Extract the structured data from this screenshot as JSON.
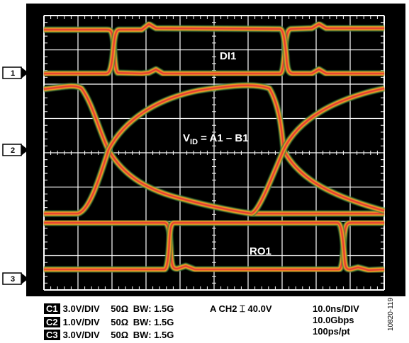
{
  "markers": [
    {
      "label": "1"
    },
    {
      "label": "2"
    },
    {
      "label": "3"
    }
  ],
  "trace_labels": {
    "di1": "DI1",
    "vid_main": "V",
    "vid_sub": "ID",
    "vid_rest": " = A1 – B1",
    "ro1": "RO1"
  },
  "channels": [
    {
      "id": "C1",
      "volts": "3.0V/DIV",
      "impedance": "50Ω",
      "bw": "BW: 1.5G"
    },
    {
      "id": "C2",
      "volts": "1.0V/DIV",
      "impedance": "50Ω",
      "bw": "BW: 1.5G"
    },
    {
      "id": "C3",
      "volts": "3.0V/DIV",
      "impedance": "50Ω",
      "bw": "BW: 1.5G"
    }
  ],
  "trigger": "A  CH2 ⌶ 40.0V",
  "timebase": [
    "10.0ns/DIV",
    "10.0Gbps",
    "100ps/pt"
  ],
  "figure_id": "10820-119",
  "colors": {
    "screen": "#000000",
    "grid": "#ffffff",
    "trace_outer": "#4caf50",
    "trace_mid": "#f5a623",
    "trace_core": "#e53935"
  }
}
